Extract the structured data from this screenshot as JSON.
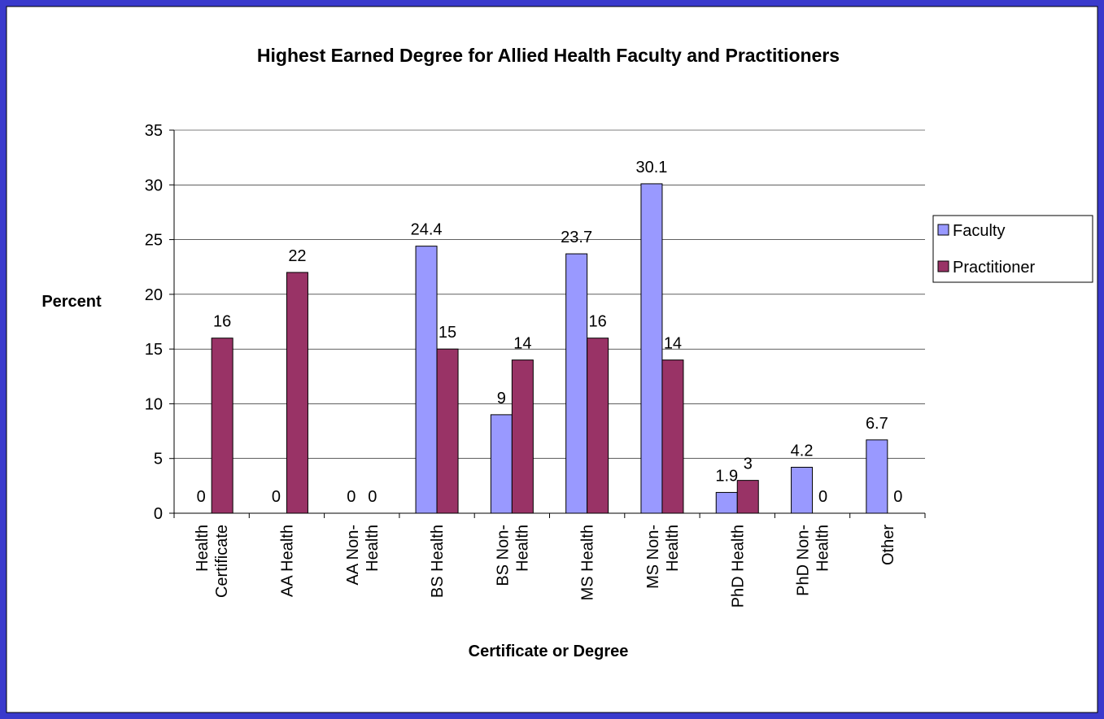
{
  "chart_data": {
    "type": "bar",
    "title": "Highest Earned Degree for Allied Health Faculty and Practitioners",
    "x_label": "Certificate or Degree",
    "y_label": "Percent",
    "categories": [
      "Health Certificate",
      "AA Health",
      "AA Non-Health",
      "BS Health",
      "BS Non-Health",
      "MS Health",
      "MS Non-Health",
      "PhD Health",
      "PhD Non-Health",
      "Other"
    ],
    "series": [
      {
        "name": "Faculty",
        "color": "#9999ff",
        "values": [
          0,
          0,
          0,
          24.4,
          9,
          23.7,
          30.1,
          1.9,
          4.2,
          6.7
        ]
      },
      {
        "name": "Practitioner",
        "color": "#993366",
        "values": [
          16,
          22,
          0,
          15,
          14,
          16,
          14,
          3,
          0,
          0
        ]
      }
    ],
    "ylim": [
      0,
      35
    ],
    "yticks": [
      0,
      5,
      10,
      15,
      20,
      25,
      30,
      35
    ],
    "grid": true,
    "legend": "right"
  }
}
